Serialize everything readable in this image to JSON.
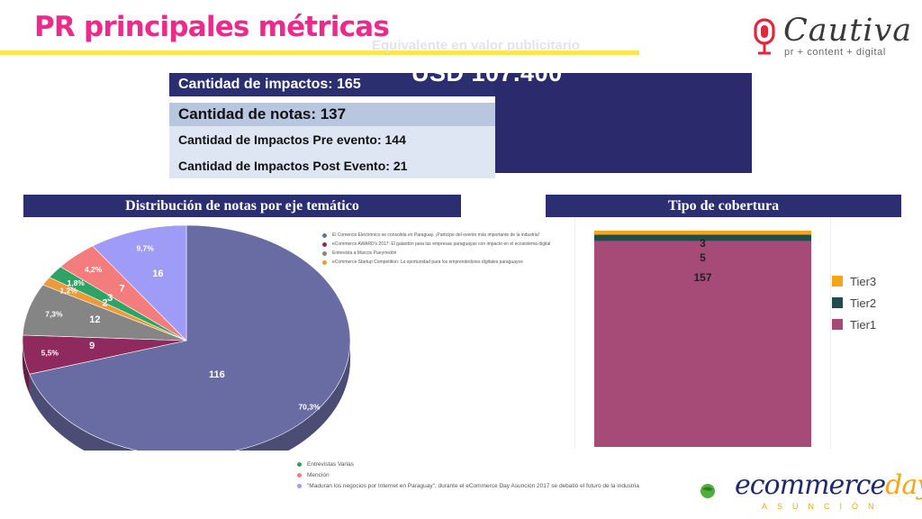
{
  "header": {
    "title": "PR principales métricas"
  },
  "brand": {
    "name": "Cautiva",
    "tagline": "pr + content + digital"
  },
  "metrics": {
    "impactos": "Cantidad de impactos: 165",
    "notas": "Cantidad de notas: 137",
    "pre_evento": "Cantidad de Impactos Pre evento: 144",
    "post_evento": "Cantidad de Impactos Post Evento: 21"
  },
  "valor_publicitario": {
    "label": "Equivalente en valor publicitario",
    "amount": "USD 107.400"
  },
  "sections": {
    "pie_title": "Distribución de notas por eje temático",
    "bar_title": "Tipo de cobertura"
  },
  "colors": {
    "navy": "#2b2f72",
    "pink": "#ec2a8c",
    "yellow": "#f7e94c"
  },
  "chart_data": [
    {
      "type": "pie",
      "slices": [
        {
          "legend": "El Comercio Electrónico se consolida en Paraguay. ¡Participe del evento más importante de la industria!",
          "value": 116,
          "percent": "70,3%",
          "color": "#696ba3"
        },
        {
          "legend": "eCommerce AWARD's 2017: El galardón para las empresas paraguayas con impacto en el ecosistema digital",
          "value": 9,
          "percent": "5,5%",
          "color": "#8e2a5d"
        },
        {
          "legend": "Entrevista a Marcos Pueyrredón",
          "value": 12,
          "percent": "7,3%",
          "color": "#858585"
        },
        {
          "legend": "eCommerce Startup Competition: La oportunidad para los emprendedores digitales paraguayos",
          "value": 2,
          "percent": "1,2%",
          "color": "#ee9a3a"
        },
        {
          "legend": "Entrevistas Varias",
          "value": 3,
          "percent": "1,8%",
          "color": "#2fa365"
        },
        {
          "legend": "Mención",
          "value": 7,
          "percent": "4,2%",
          "color": "#f47c7c"
        },
        {
          "legend": "\"Maduran los negocios por Internet en Paraguay\", durante el eCommerce Day Asunción 2017 se debatió el futuro de la industria",
          "value": 16,
          "percent": "9,7%",
          "color": "#9e9cf7"
        }
      ]
    },
    {
      "type": "bar",
      "stacked": true,
      "categories": [
        ""
      ],
      "series": [
        {
          "name": "Tier1",
          "values": [
            157
          ],
          "color": "#a64b78"
        },
        {
          "name": "Tier2",
          "values": [
            5
          ],
          "color": "#1d4d4d"
        },
        {
          "name": "Tier3",
          "values": [
            3
          ],
          "color": "#f5a516"
        }
      ],
      "legend_order": [
        "Tier3",
        "Tier2",
        "Tier1"
      ]
    }
  ],
  "event_logo": {
    "text": "ecommerce",
    "highlight": "day",
    "subtitle": "ASUNCIÓN"
  }
}
